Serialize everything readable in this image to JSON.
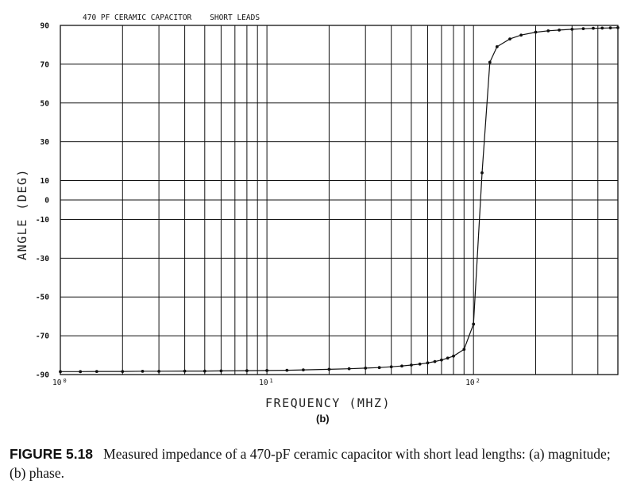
{
  "chart_data": {
    "type": "line",
    "title": "470 PF CERAMIC CAPACITOR    SHORT LEADS",
    "xlabel": "FREQUENCY (MHZ)",
    "ylabel": "ANGLE (DEG)",
    "x_scale": "log",
    "xlim": [
      1,
      500
    ],
    "ylim": [
      -90,
      90
    ],
    "y_ticks": [
      90,
      70,
      50,
      30,
      10,
      0,
      -10,
      -30,
      -50,
      -70,
      -90
    ],
    "x_tick_labels": [
      {
        "value": 1,
        "base": "10",
        "exp": "0"
      },
      {
        "value": 10,
        "base": "10",
        "exp": "1"
      },
      {
        "value": 100,
        "base": "10",
        "exp": "2"
      }
    ],
    "grid": true,
    "x": [
      1,
      1.25,
      1.5,
      2,
      2.5,
      3,
      4,
      5,
      6,
      8,
      10,
      12.5,
      15,
      20,
      25,
      30,
      35,
      40,
      45,
      50,
      55,
      60,
      65,
      70,
      75,
      80,
      90,
      100,
      110,
      120,
      130,
      150,
      170,
      200,
      230,
      260,
      300,
      340,
      380,
      420,
      460,
      500
    ],
    "series": [
      {
        "values": [
          -88.5,
          -88.5,
          -88.4,
          -88.4,
          -88.3,
          -88.3,
          -88.2,
          -88.2,
          -88.1,
          -88.0,
          -87.9,
          -87.8,
          -87.6,
          -87.3,
          -87.0,
          -86.7,
          -86.4,
          -86.0,
          -85.6,
          -85.1,
          -84.6,
          -84.0,
          -83.3,
          -82.5,
          -81.5,
          -80.5,
          -77.0,
          -64.0,
          14.0,
          71.0,
          79.0,
          83.0,
          85.0,
          86.5,
          87.2,
          87.6,
          88.0,
          88.3,
          88.5,
          88.6,
          88.7,
          88.8
        ]
      }
    ]
  },
  "figure": {
    "sublabel": "(b)",
    "caption_label": "FIGURE 5.18",
    "caption_text": "Measured impedance of a 470-pF ceramic capacitor with short lead lengths: (a) magnitude; (b) phase."
  }
}
